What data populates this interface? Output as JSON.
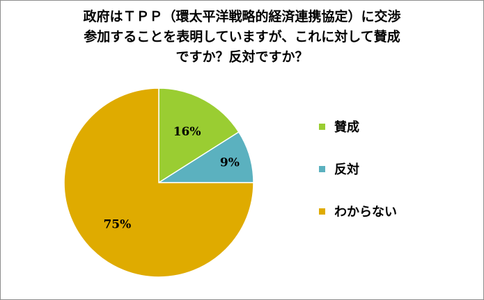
{
  "chart_data": {
    "type": "pie",
    "title_lines": [
      "政府はＴＰＰ（環太平洋戦略的経済連携協定）に交渉",
      "参加することを表明していますが、これに対して賛成",
      "ですか？反対ですか？"
    ],
    "slices": [
      {
        "label": "賛成",
        "value": 16,
        "display": "16%",
        "color": "#9acd32"
      },
      {
        "label": "反対",
        "value": 9,
        "display": "9%",
        "color": "#5bb1bf"
      },
      {
        "label": "わからない",
        "value": 75,
        "display": "75%",
        "color": "#dfab00"
      }
    ],
    "legend_position": "right"
  }
}
